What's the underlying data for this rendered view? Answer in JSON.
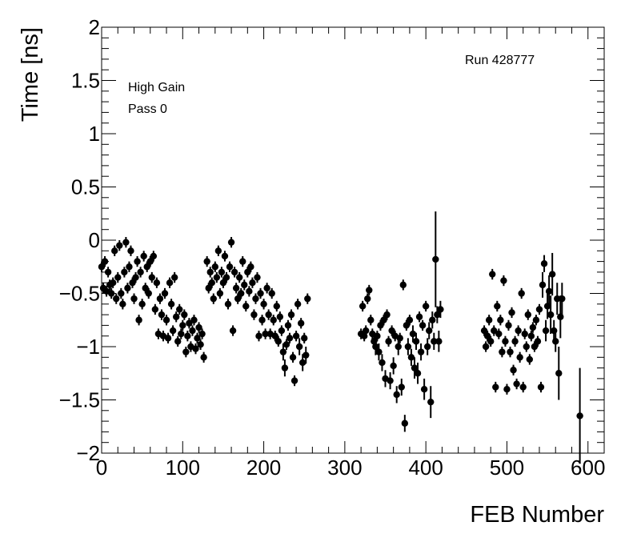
{
  "chart_data": {
    "type": "scatter",
    "title": "",
    "xlabel": "FEB Number",
    "ylabel": "Time [ns]",
    "xlim": [
      0,
      620
    ],
    "ylim": [
      -2,
      2
    ],
    "x_ticks": [
      0,
      100,
      200,
      300,
      400,
      500,
      600
    ],
    "y_ticks": [
      -2,
      -1.5,
      -1,
      -0.5,
      0,
      0.5,
      1,
      1.5,
      2
    ],
    "x_tick_labels": [
      "0",
      "100",
      "200",
      "300",
      "400",
      "500",
      "600"
    ],
    "y_tick_labels": [
      "−2",
      "−1.5",
      "−1",
      "−0.5",
      "0",
      "0.5",
      "1",
      "1.5",
      "2"
    ],
    "grid": false,
    "marker_color": "#000000",
    "annotations": {
      "gain": "High Gain",
      "pass": "Pass 0",
      "run": "Run 428777"
    },
    "series": [
      {
        "points": [
          [
            0,
            -0.25,
            0.05
          ],
          [
            2,
            -0.45,
            0.05
          ],
          [
            4,
            -0.2,
            0.05
          ],
          [
            6,
            -0.48,
            0.05
          ],
          [
            8,
            -0.3,
            0.05
          ],
          [
            10,
            -0.42,
            0.05
          ],
          [
            12,
            -0.5,
            0.05
          ],
          [
            14,
            -0.4,
            0.05
          ],
          [
            16,
            -0.1,
            0.05
          ],
          [
            18,
            -0.55,
            0.05
          ],
          [
            20,
            -0.35,
            0.05
          ],
          [
            22,
            -0.05,
            0.05
          ],
          [
            24,
            -0.5,
            0.05
          ],
          [
            26,
            -0.6,
            0.05
          ],
          [
            28,
            -0.3,
            0.05
          ],
          [
            30,
            -0.02,
            0.05
          ],
          [
            32,
            -0.45,
            0.05
          ],
          [
            34,
            -0.25,
            0.05
          ],
          [
            36,
            -0.1,
            0.05
          ],
          [
            38,
            -0.4,
            0.05
          ],
          [
            40,
            -0.55,
            0.05
          ],
          [
            42,
            -0.35,
            0.05
          ],
          [
            44,
            -0.2,
            0.05
          ],
          [
            46,
            -0.75,
            0.05
          ],
          [
            48,
            -0.3,
            0.05
          ],
          [
            50,
            -0.6,
            0.05
          ],
          [
            52,
            -0.15,
            0.05
          ],
          [
            54,
            -0.45,
            0.05
          ],
          [
            56,
            -0.25,
            0.05
          ],
          [
            58,
            -0.5,
            0.05
          ],
          [
            60,
            -0.2,
            0.05
          ],
          [
            62,
            -0.35,
            0.05
          ],
          [
            64,
            -0.15,
            0.05
          ],
          [
            66,
            -0.65,
            0.05
          ],
          [
            68,
            -0.4,
            0.05
          ],
          [
            70,
            -0.88,
            0.05
          ],
          [
            72,
            -0.55,
            0.05
          ],
          [
            74,
            -0.7,
            0.05
          ],
          [
            76,
            -0.9,
            0.05
          ],
          [
            78,
            -0.5,
            0.05
          ],
          [
            80,
            -0.75,
            0.05
          ],
          [
            82,
            -0.92,
            0.05
          ],
          [
            84,
            -0.4,
            0.05
          ],
          [
            86,
            -0.6,
            0.05
          ],
          [
            88,
            -0.85,
            0.05
          ],
          [
            90,
            -0.35,
            0.05
          ],
          [
            92,
            -0.72,
            0.05
          ],
          [
            94,
            -0.95,
            0.05
          ],
          [
            96,
            -0.65,
            0.05
          ],
          [
            98,
            -0.88,
            0.05
          ],
          [
            100,
            -0.8,
            0.05
          ],
          [
            102,
            -0.7,
            0.05
          ],
          [
            104,
            -1.05,
            0.05
          ],
          [
            106,
            -0.9,
            0.05
          ],
          [
            108,
            -0.78,
            0.05
          ],
          [
            110,
            -1.0,
            0.05
          ],
          [
            112,
            -0.85,
            0.05
          ],
          [
            114,
            -0.75,
            0.05
          ],
          [
            116,
            -1.02,
            0.05
          ],
          [
            118,
            -0.92,
            0.05
          ],
          [
            120,
            -0.82,
            0.05
          ],
          [
            122,
            -0.98,
            0.05
          ],
          [
            124,
            -0.88,
            0.05
          ],
          [
            126,
            -1.1,
            0.05
          ],
          [
            130,
            -0.2,
            0.05
          ],
          [
            132,
            -0.45,
            0.05
          ],
          [
            134,
            -0.3,
            0.05
          ],
          [
            136,
            -0.4,
            0.05
          ],
          [
            138,
            -0.55,
            0.05
          ],
          [
            140,
            -0.25,
            0.05
          ],
          [
            142,
            -0.35,
            0.05
          ],
          [
            144,
            -0.1,
            0.05
          ],
          [
            146,
            -0.5,
            0.05
          ],
          [
            148,
            -0.3,
            0.05
          ],
          [
            150,
            -0.4,
            0.05
          ],
          [
            152,
            -0.15,
            0.05
          ],
          [
            154,
            -0.35,
            0.05
          ],
          [
            156,
            -0.6,
            0.05
          ],
          [
            158,
            -0.25,
            0.05
          ],
          [
            160,
            -0.02,
            0.05
          ],
          [
            162,
            -0.85,
            0.05
          ],
          [
            164,
            -0.3,
            0.05
          ],
          [
            166,
            -0.45,
            0.05
          ],
          [
            168,
            -0.55,
            0.05
          ],
          [
            170,
            -0.35,
            0.05
          ],
          [
            172,
            -0.5,
            0.05
          ],
          [
            174,
            -0.2,
            0.05
          ],
          [
            176,
            -0.42,
            0.05
          ],
          [
            178,
            -0.62,
            0.05
          ],
          [
            180,
            -0.3,
            0.05
          ],
          [
            182,
            -0.48,
            0.05
          ],
          [
            184,
            -0.25,
            0.05
          ],
          [
            186,
            -0.4,
            0.05
          ],
          [
            188,
            -0.7,
            0.05
          ],
          [
            190,
            -0.55,
            0.05
          ],
          [
            192,
            -0.35,
            0.05
          ],
          [
            194,
            -0.9,
            0.05
          ],
          [
            196,
            -0.5,
            0.05
          ],
          [
            198,
            -0.75,
            0.05
          ],
          [
            200,
            -0.6,
            0.05
          ],
          [
            202,
            -0.88,
            0.05
          ],
          [
            204,
            -0.45,
            0.05
          ],
          [
            206,
            -0.7,
            0.05
          ],
          [
            208,
            -0.88,
            0.05
          ],
          [
            210,
            -0.5,
            0.05
          ],
          [
            212,
            -0.75,
            0.05
          ],
          [
            214,
            -0.9,
            0.05
          ],
          [
            216,
            -0.62,
            0.05
          ],
          [
            218,
            -0.95,
            0.05
          ],
          [
            220,
            -0.72,
            0.05
          ],
          [
            222,
            -0.85,
            0.05
          ],
          [
            224,
            -1.05,
            0.08
          ],
          [
            226,
            -1.2,
            0.08
          ],
          [
            228,
            -0.98,
            0.05
          ],
          [
            230,
            -0.8,
            0.05
          ],
          [
            232,
            -0.92,
            0.05
          ],
          [
            234,
            -0.7,
            0.05
          ],
          [
            236,
            -1.1,
            0.05
          ],
          [
            238,
            -1.32,
            0.05
          ],
          [
            240,
            -0.9,
            0.05
          ],
          [
            242,
            -0.6,
            0.05
          ],
          [
            244,
            -1.0,
            0.08
          ],
          [
            246,
            -0.78,
            0.05
          ],
          [
            248,
            -1.15,
            0.08
          ],
          [
            250,
            -0.92,
            0.05
          ],
          [
            252,
            -1.08,
            0.08
          ],
          [
            254,
            -0.55,
            0.05
          ],
          [
            320,
            -0.88,
            0.05
          ],
          [
            322,
            -0.62,
            0.05
          ],
          [
            324,
            -0.9,
            0.05
          ],
          [
            326,
            -0.85,
            0.05
          ],
          [
            328,
            -0.55,
            0.05
          ],
          [
            330,
            -0.47,
            0.05
          ],
          [
            332,
            -0.75,
            0.05
          ],
          [
            334,
            -0.88,
            0.05
          ],
          [
            336,
            -0.95,
            0.05
          ],
          [
            338,
            -1.0,
            0.08
          ],
          [
            340,
            -0.9,
            0.05
          ],
          [
            342,
            -1.05,
            0.08
          ],
          [
            344,
            -0.8,
            0.05
          ],
          [
            346,
            -1.15,
            0.08
          ],
          [
            348,
            -0.75,
            0.05
          ],
          [
            350,
            -1.3,
            0.08
          ],
          [
            352,
            -0.7,
            0.05
          ],
          [
            354,
            -0.95,
            0.05
          ],
          [
            356,
            -1.32,
            0.08
          ],
          [
            358,
            -0.85,
            0.05
          ],
          [
            360,
            -1.18,
            0.08
          ],
          [
            362,
            -0.9,
            0.05
          ],
          [
            364,
            -1.45,
            0.08
          ],
          [
            366,
            -1.0,
            0.08
          ],
          [
            368,
            -0.92,
            0.05
          ],
          [
            370,
            -1.38,
            0.08
          ],
          [
            372,
            -0.42,
            0.05
          ],
          [
            374,
            -1.72,
            0.08
          ],
          [
            376,
            -0.8,
            0.05
          ],
          [
            378,
            -1.0,
            0.08
          ],
          [
            380,
            -0.75,
            0.05
          ],
          [
            382,
            -1.1,
            0.08
          ],
          [
            384,
            -0.88,
            0.08
          ],
          [
            386,
            -1.2,
            0.1
          ],
          [
            388,
            -0.95,
            0.08
          ],
          [
            390,
            -1.25,
            0.1
          ],
          [
            392,
            -0.72,
            0.05
          ],
          [
            394,
            -1.05,
            0.08
          ],
          [
            396,
            -0.8,
            0.05
          ],
          [
            398,
            -1.4,
            0.1
          ],
          [
            400,
            -0.62,
            0.05
          ],
          [
            402,
            -1.0,
            0.08
          ],
          [
            404,
            -0.85,
            0.08
          ],
          [
            406,
            -1.52,
            0.15
          ],
          [
            408,
            -0.75,
            0.08
          ],
          [
            410,
            -0.95,
            0.08
          ],
          [
            412,
            -0.18,
            0.45
          ],
          [
            414,
            -0.7,
            0.08
          ],
          [
            416,
            -0.95,
            0.1
          ],
          [
            418,
            -0.65,
            0.08
          ],
          [
            472,
            -0.85,
            0.05
          ],
          [
            474,
            -1.0,
            0.05
          ],
          [
            476,
            -0.9,
            0.05
          ],
          [
            478,
            -0.75,
            0.05
          ],
          [
            480,
            -0.95,
            0.05
          ],
          [
            482,
            -0.32,
            0.05
          ],
          [
            484,
            -0.85,
            0.05
          ],
          [
            486,
            -1.38,
            0.05
          ],
          [
            488,
            -0.62,
            0.05
          ],
          [
            490,
            -0.88,
            0.05
          ],
          [
            492,
            -0.75,
            0.05
          ],
          [
            494,
            -1.05,
            0.05
          ],
          [
            496,
            -0.38,
            0.05
          ],
          [
            498,
            -0.95,
            0.05
          ],
          [
            500,
            -1.4,
            0.05
          ],
          [
            502,
            -0.8,
            0.05
          ],
          [
            504,
            -1.05,
            0.05
          ],
          [
            506,
            -0.68,
            0.05
          ],
          [
            508,
            -1.22,
            0.05
          ],
          [
            510,
            -0.95,
            0.05
          ],
          [
            512,
            -1.35,
            0.05
          ],
          [
            514,
            -0.85,
            0.05
          ],
          [
            516,
            -1.1,
            0.05
          ],
          [
            518,
            -0.5,
            0.05
          ],
          [
            520,
            -1.38,
            0.05
          ],
          [
            522,
            -0.88,
            0.05
          ],
          [
            524,
            -1.0,
            0.05
          ],
          [
            526,
            -0.7,
            0.05
          ],
          [
            528,
            -1.12,
            0.05
          ],
          [
            530,
            -0.9,
            0.05
          ],
          [
            532,
            -0.82,
            0.05
          ],
          [
            534,
            -1.0,
            0.05
          ],
          [
            536,
            -0.75,
            0.05
          ],
          [
            538,
            -0.95,
            0.05
          ],
          [
            540,
            -0.65,
            0.05
          ],
          [
            542,
            -1.38,
            0.05
          ],
          [
            544,
            -0.42,
            0.12
          ],
          [
            546,
            -0.22,
            0.08
          ],
          [
            548,
            -0.85,
            0.1
          ],
          [
            550,
            -0.62,
            0.12
          ],
          [
            552,
            -0.48,
            0.15
          ],
          [
            554,
            -0.7,
            0.18
          ],
          [
            556,
            -0.32,
            0.2
          ],
          [
            558,
            -0.85,
            0.1
          ],
          [
            560,
            -0.95,
            0.1
          ],
          [
            562,
            -0.55,
            0.15
          ],
          [
            564,
            -1.25,
            0.25
          ],
          [
            566,
            -0.72,
            0.2
          ],
          [
            568,
            -0.55,
            0.15
          ],
          [
            590,
            -1.65,
            0.45
          ]
        ]
      }
    ]
  }
}
